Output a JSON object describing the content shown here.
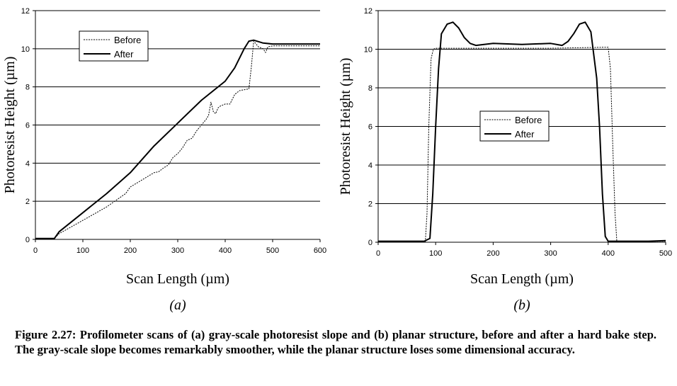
{
  "chart_data": [
    {
      "type": "line",
      "panel_label": "(a)",
      "xlabel": "Scan Length (µm)",
      "ylabel": "Photoresist Height (µm)",
      "xlim": [
        0,
        600
      ],
      "ylim": [
        0,
        12
      ],
      "x_ticks": [
        "0",
        "100",
        "200",
        "300",
        "400",
        "500",
        "600"
      ],
      "y_ticks": [
        "0",
        "2",
        "4",
        "6",
        "8",
        "10",
        "12"
      ],
      "grid": "horizontal",
      "legend_position": "top-left",
      "series": [
        {
          "name": "Before",
          "style": "dotted",
          "x": [
            0,
            40,
            50,
            100,
            150,
            190,
            200,
            210,
            220,
            230,
            240,
            250,
            260,
            270,
            280,
            290,
            300,
            310,
            320,
            330,
            340,
            350,
            360,
            365,
            370,
            375,
            380,
            385,
            390,
            400,
            410,
            420,
            430,
            440,
            450,
            455,
            460,
            470,
            480,
            485,
            490,
            500,
            600
          ],
          "y": [
            0.05,
            0.05,
            0.3,
            1.0,
            1.7,
            2.4,
            2.75,
            2.9,
            3.05,
            3.2,
            3.35,
            3.5,
            3.55,
            3.75,
            3.9,
            4.3,
            4.5,
            4.8,
            5.2,
            5.3,
            5.7,
            6.0,
            6.3,
            6.5,
            7.2,
            6.7,
            6.6,
            6.9,
            7.0,
            7.1,
            7.1,
            7.6,
            7.8,
            7.85,
            7.9,
            9.0,
            10.4,
            10.1,
            10.0,
            9.8,
            10.1,
            10.15,
            10.15
          ]
        },
        {
          "name": "After",
          "style": "solid",
          "x": [
            0,
            40,
            50,
            100,
            150,
            200,
            250,
            300,
            350,
            400,
            420,
            440,
            450,
            460,
            480,
            500,
            600
          ],
          "y": [
            0.05,
            0.05,
            0.4,
            1.4,
            2.4,
            3.5,
            4.9,
            6.1,
            7.3,
            8.3,
            9.0,
            10.0,
            10.4,
            10.45,
            10.3,
            10.25,
            10.25
          ]
        }
      ]
    },
    {
      "type": "line",
      "panel_label": "(b)",
      "xlabel": "Scan Length (µm)",
      "ylabel": "Photoresist Height (µm)",
      "xlim": [
        0,
        500
      ],
      "ylim": [
        0,
        12
      ],
      "x_ticks": [
        "0",
        "100",
        "200",
        "300",
        "400",
        "500"
      ],
      "y_ticks": [
        "0",
        "2",
        "4",
        "6",
        "8",
        "10",
        "12"
      ],
      "grid": "horizontal",
      "legend_position": "center",
      "series": [
        {
          "name": "Before",
          "style": "dotted",
          "x": [
            0,
            82,
            85,
            88,
            92,
            96,
            100,
            200,
            300,
            390,
            400,
            404,
            408,
            412,
            415,
            500
          ],
          "y": [
            0.02,
            0.02,
            1.5,
            6.0,
            9.5,
            10.0,
            10.05,
            10.05,
            10.05,
            10.1,
            10.1,
            9.0,
            5.0,
            1.5,
            0.05,
            0.05
          ]
        },
        {
          "name": "After",
          "style": "solid",
          "x": [
            0,
            80,
            90,
            95,
            100,
            105,
            110,
            120,
            130,
            140,
            150,
            160,
            170,
            200,
            250,
            300,
            320,
            330,
            340,
            350,
            360,
            370,
            380,
            385,
            390,
            395,
            400,
            405,
            420,
            470,
            500
          ],
          "y": [
            0.05,
            0.05,
            0.2,
            2.5,
            6.0,
            9.0,
            10.8,
            11.3,
            11.4,
            11.1,
            10.6,
            10.3,
            10.2,
            10.3,
            10.25,
            10.3,
            10.2,
            10.4,
            10.8,
            11.3,
            11.4,
            10.9,
            8.5,
            6.0,
            2.5,
            0.3,
            0.05,
            0.05,
            0.05,
            0.05,
            0.08
          ]
        }
      ]
    }
  ],
  "caption": "Figure 2.27: Profilometer scans of (a) gray-scale photoresist slope and (b) planar structure, before and after a hard bake step.  The gray-scale slope becomes remarkably smoother, while the planar structure loses some dimensional accuracy."
}
